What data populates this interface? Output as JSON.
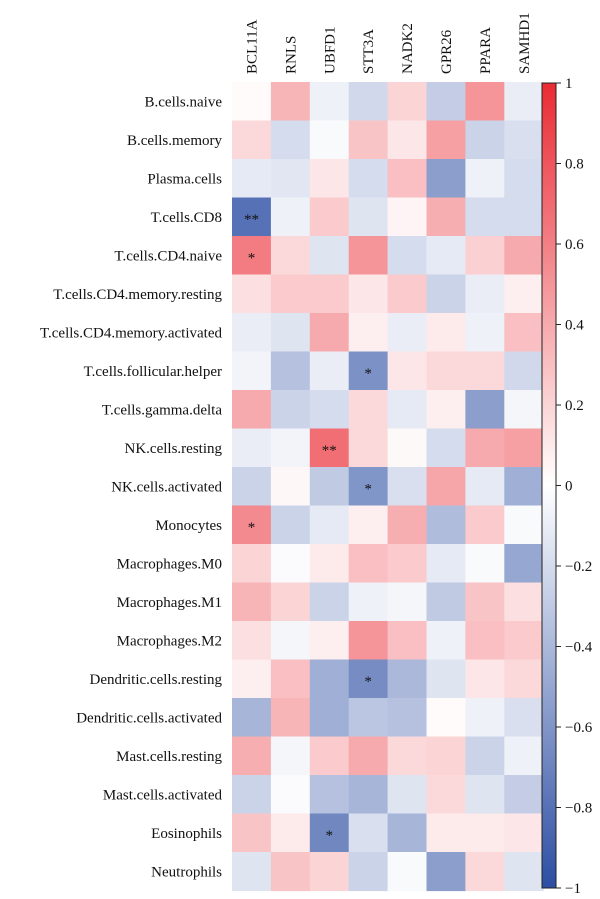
{
  "chart_data": {
    "type": "heatmap",
    "title": "",
    "columns": [
      "BCL11A",
      "RNLS",
      "UBFD1",
      "STT3A",
      "NADK2",
      "GPR26",
      "PPARA",
      "SAMHD1"
    ],
    "rows": [
      "B.cells.naive",
      "B.cells.memory",
      "Plasma.cells",
      "T.cells.CD8",
      "T.cells.CD4.naive",
      "T.cells.CD4.memory.resting",
      "T.cells.CD4.memory.activated",
      "T.cells.follicular.helper",
      "T.cells.gamma.delta",
      "NK.cells.resting",
      "NK.cells.activated",
      "Monocytes",
      "Macrophages.M0",
      "Macrophages.M1",
      "Macrophages.M2",
      "Dendritic.cells.resting",
      "Dendritic.cells.activated",
      "Mast.cells.resting",
      "Mast.cells.activated",
      "Eosinophils",
      "Neutrophils"
    ],
    "values": [
      [
        0.02,
        0.35,
        -0.08,
        -0.22,
        0.2,
        -0.28,
        0.5,
        -0.1
      ],
      [
        0.18,
        -0.2,
        -0.03,
        0.28,
        0.12,
        0.45,
        -0.25,
        -0.18
      ],
      [
        -0.12,
        -0.14,
        0.12,
        -0.2,
        0.3,
        -0.55,
        -0.08,
        -0.2
      ],
      [
        -0.8,
        -0.08,
        0.25,
        -0.15,
        0.05,
        0.38,
        -0.2,
        -0.2
      ],
      [
        0.62,
        0.18,
        -0.15,
        0.5,
        -0.2,
        -0.12,
        0.22,
        0.4
      ],
      [
        0.15,
        0.25,
        0.25,
        0.12,
        0.25,
        -0.25,
        -0.1,
        0.08
      ],
      [
        -0.1,
        -0.15,
        0.4,
        0.08,
        -0.1,
        0.1,
        -0.08,
        0.3
      ],
      [
        -0.06,
        -0.35,
        -0.1,
        -0.62,
        0.12,
        0.18,
        0.18,
        -0.22
      ],
      [
        0.4,
        -0.25,
        -0.2,
        0.18,
        -0.12,
        0.08,
        -0.55,
        -0.05
      ],
      [
        -0.1,
        -0.06,
        0.68,
        0.18,
        0.03,
        -0.2,
        0.4,
        0.45
      ],
      [
        -0.25,
        0.04,
        -0.3,
        -0.6,
        -0.18,
        0.42,
        -0.12,
        -0.45
      ],
      [
        0.55,
        -0.25,
        -0.12,
        0.08,
        0.38,
        -0.38,
        0.25,
        -0.03
      ],
      [
        0.2,
        -0.02,
        0.1,
        0.3,
        0.25,
        -0.12,
        -0.03,
        -0.5
      ],
      [
        0.35,
        0.2,
        -0.25,
        -0.08,
        -0.05,
        -0.3,
        0.28,
        0.15
      ],
      [
        0.15,
        -0.05,
        0.08,
        0.5,
        0.3,
        -0.08,
        0.3,
        0.25
      ],
      [
        0.08,
        0.3,
        -0.45,
        -0.65,
        -0.4,
        -0.15,
        0.12,
        0.18
      ],
      [
        -0.42,
        0.35,
        -0.45,
        -0.32,
        -0.35,
        0.02,
        -0.08,
        -0.18
      ],
      [
        0.38,
        -0.05,
        0.25,
        0.4,
        0.18,
        0.2,
        -0.25,
        -0.08
      ],
      [
        -0.25,
        -0.02,
        -0.35,
        -0.42,
        -0.15,
        0.18,
        -0.15,
        -0.28
      ],
      [
        0.28,
        0.1,
        -0.68,
        -0.18,
        -0.42,
        0.1,
        0.1,
        0.12
      ],
      [
        -0.15,
        0.28,
        0.2,
        -0.25,
        -0.03,
        -0.55,
        0.18,
        -0.15
      ]
    ],
    "stars": [
      {
        "row": 3,
        "col": 0,
        "text": "**"
      },
      {
        "row": 4,
        "col": 0,
        "text": "*"
      },
      {
        "row": 7,
        "col": 3,
        "text": "*"
      },
      {
        "row": 9,
        "col": 2,
        "text": "**"
      },
      {
        "row": 10,
        "col": 3,
        "text": "*"
      },
      {
        "row": 11,
        "col": 0,
        "text": "*"
      },
      {
        "row": 15,
        "col": 3,
        "text": "*"
      },
      {
        "row": 19,
        "col": 2,
        "text": "*"
      }
    ],
    "colorbar": {
      "range": [
        -1,
        1
      ],
      "ticks": [
        1,
        0.8,
        0.6,
        0.4,
        0.2,
        0,
        -0.2,
        -0.4,
        -0.6,
        -0.8,
        -1
      ],
      "tick_labels": [
        "1",
        "0.8",
        "0.6",
        "0.4",
        "0.2",
        "0",
        "−0.2",
        "−0.4",
        "−0.6",
        "−0.8",
        "−1"
      ],
      "colors": {
        "negative": "#2c4ea3",
        "zero": "#ffffff",
        "positive": "#ea2b33"
      }
    }
  }
}
